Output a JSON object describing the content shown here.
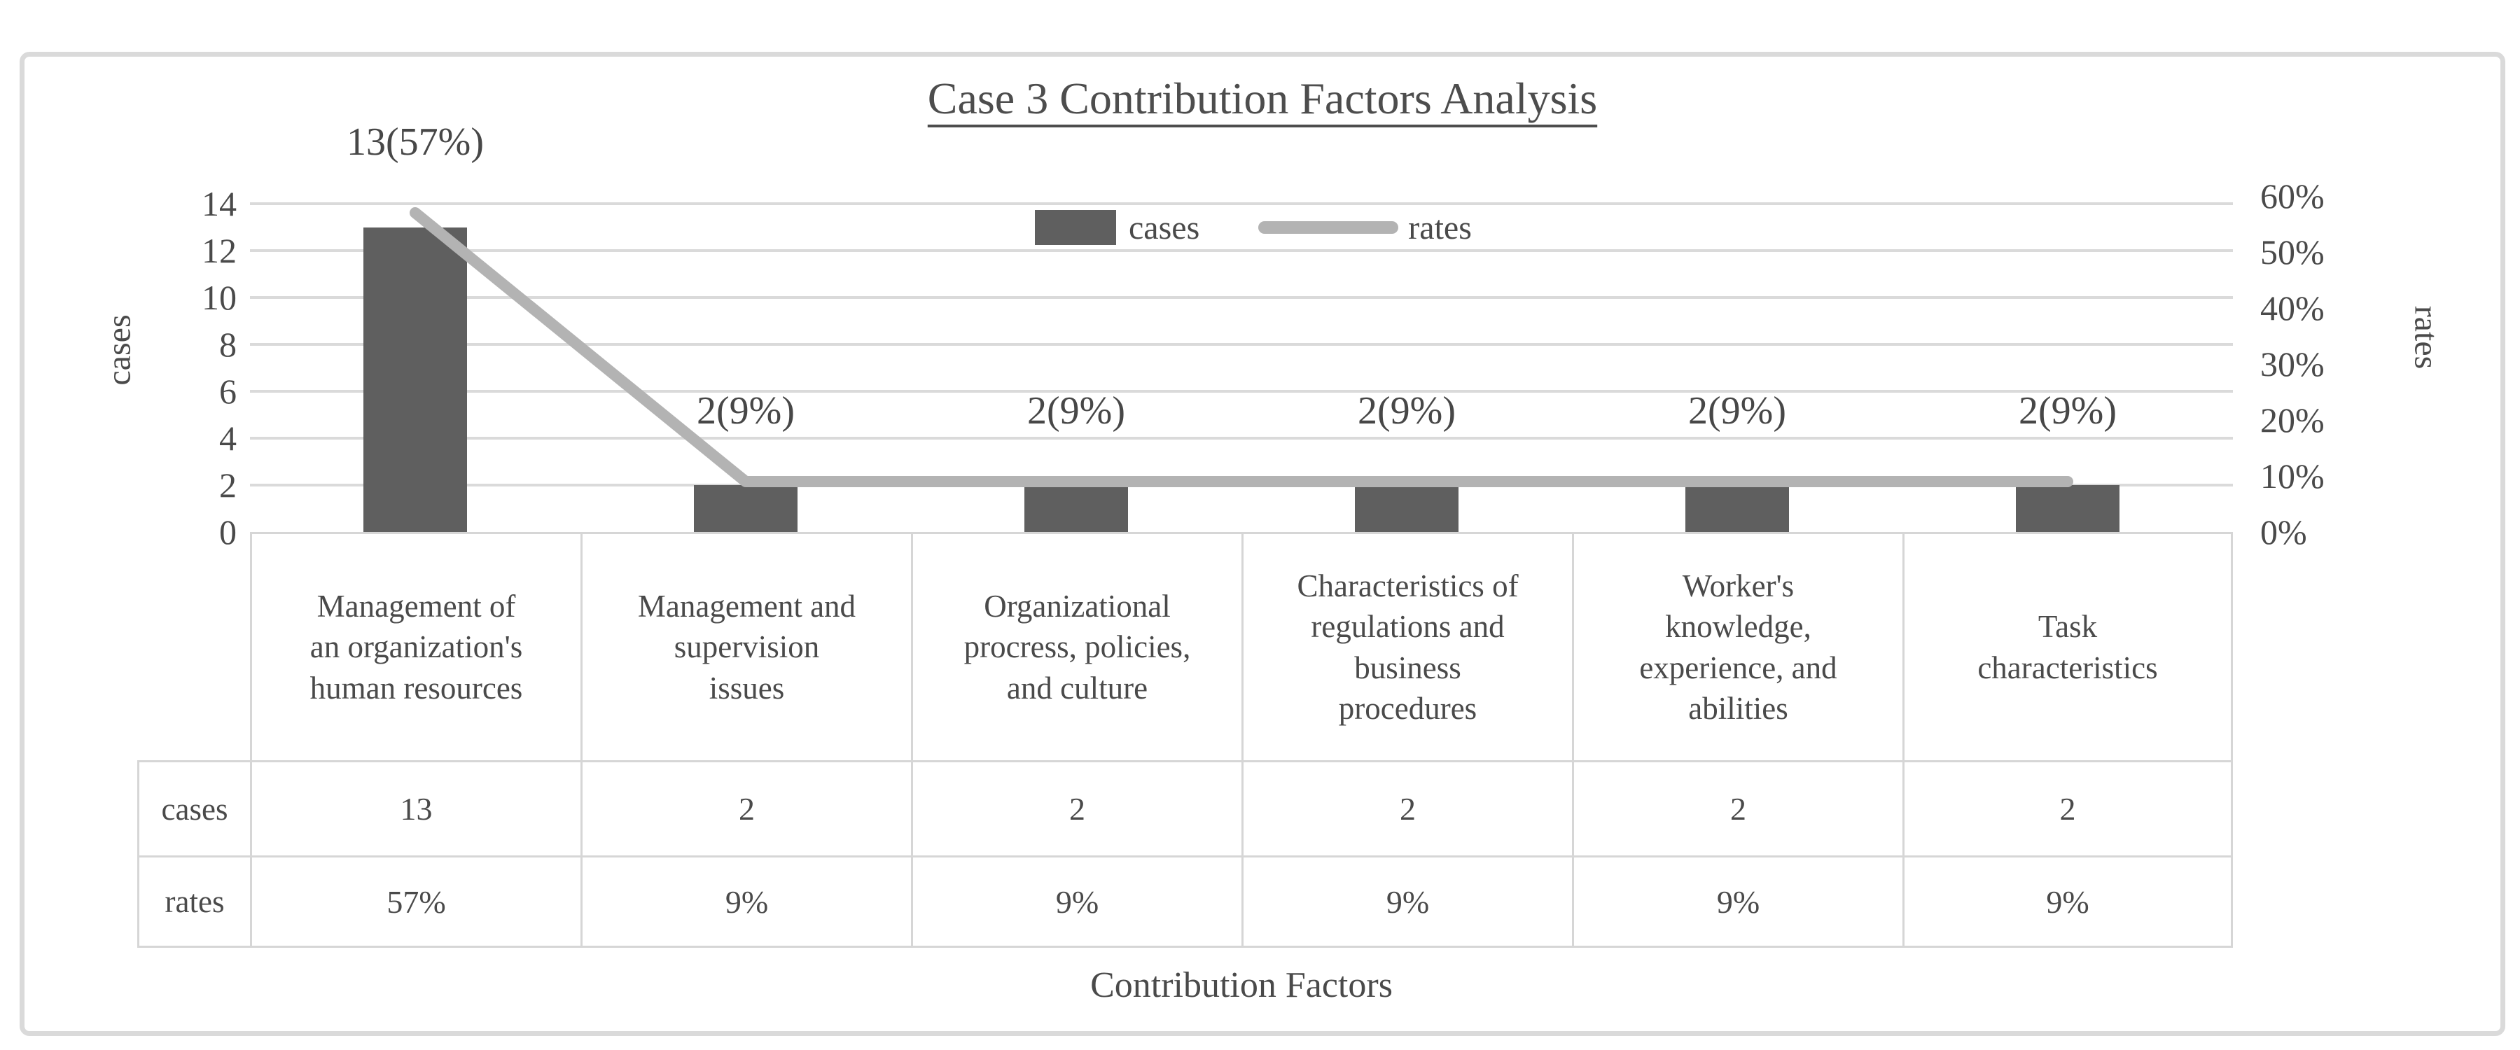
{
  "title": {
    "text": "Case 3 Contribution Factors Analysis"
  },
  "legend": {
    "cases_label": "cases",
    "rates_label": "rates"
  },
  "axes": {
    "left": {
      "title": "cases",
      "ticks": [
        "14",
        "12",
        "10",
        "8",
        "6",
        "4",
        "2",
        "0"
      ]
    },
    "right": {
      "title": "rates",
      "ticks": [
        "60%",
        "50%",
        "40%",
        "30%",
        "20%",
        "10%",
        "0%"
      ]
    },
    "x": {
      "title": "Contribution Factors"
    }
  },
  "chart_data": {
    "type": "bar",
    "title": "Case 3 Contribution Factors Analysis",
    "categories": [
      "Management of an organization's human resources",
      "Management and supervision issues",
      "Organizational procress, policies, and culture",
      "Characteristics of regulations and business procedures",
      "Worker's knowledge, experience, and abilities",
      "Task characteristics"
    ],
    "series": [
      {
        "name": "cases",
        "type": "bar",
        "axis": "left",
        "values": [
          13,
          2,
          2,
          2,
          2,
          2
        ],
        "color": "#5f5f5f"
      },
      {
        "name": "rates",
        "type": "line",
        "axis": "right",
        "values_pct": [
          57,
          9,
          9,
          9,
          9,
          9
        ],
        "color": "#b3b3b3"
      }
    ],
    "point_labels": [
      "13(57%)",
      "2(9%)",
      "2(9%)",
      "2(9%)",
      "2(9%)",
      "2(9%)"
    ],
    "xlabel": "Contribution Factors",
    "ylabel_left": "cases",
    "ylabel_right": "rates",
    "ylim_left": [
      0,
      14
    ],
    "ylim_right_pct": [
      0,
      60
    ],
    "grid": "horizontal major gridlines",
    "legend_position": "inside top center"
  },
  "table": {
    "categories_display": [
      "Management of\nan organization's\nhuman resources",
      "Management and\nsupervision\nissues",
      "Organizational\nprocress, policies,\nand culture",
      "Characteristics of\nregulations and\nbusiness\nprocedures",
      "Worker's\nknowledge,\nexperience, and\nabilities",
      "Task\ncharacteristics"
    ],
    "rows": [
      {
        "header": "cases",
        "cells": [
          "13",
          "2",
          "2",
          "2",
          "2",
          "2"
        ]
      },
      {
        "header": "rates",
        "cells": [
          "57%",
          "9%",
          "9%",
          "9%",
          "9%",
          "9%"
        ]
      }
    ]
  },
  "colors": {
    "bar": "#5f5f5f",
    "line": "#b3b3b3",
    "gridline": "#dadada",
    "table_border": "#d6d6d6",
    "text": "#4a4a4a",
    "frame_border": "#dadada"
  }
}
